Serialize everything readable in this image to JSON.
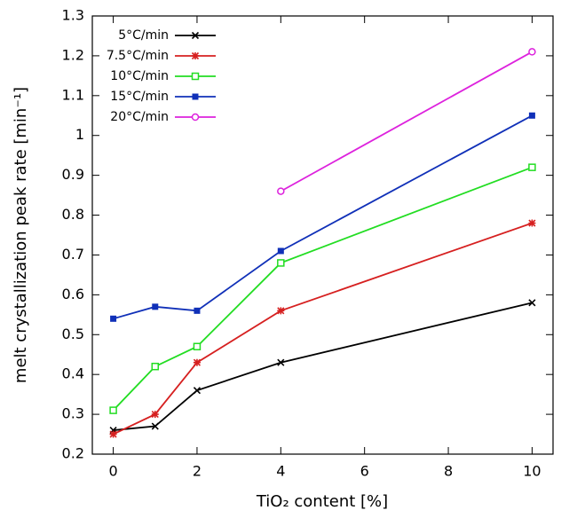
{
  "chart_data": {
    "type": "line",
    "x_label": "TiO₂ content [%]",
    "y_label": "melt crystallization peak rate [min⁻¹]",
    "x": [
      0,
      1,
      2,
      4,
      10
    ],
    "series": [
      {
        "name": "5°C/min",
        "color": "#000000",
        "marker": "x",
        "values": [
          0.26,
          0.27,
          0.36,
          0.43,
          0.58
        ]
      },
      {
        "name": "7.5°C/min",
        "color": "#d62020",
        "marker": "star",
        "values": [
          0.25,
          0.3,
          0.43,
          0.56,
          0.78
        ]
      },
      {
        "name": "10°C/min",
        "color": "#22dd22",
        "marker": "open-square",
        "values": [
          0.31,
          0.42,
          0.47,
          0.68,
          0.92
        ]
      },
      {
        "name": "15°C/min",
        "color": "#1030b8",
        "marker": "square",
        "values": [
          0.54,
          0.57,
          0.56,
          0.71,
          1.05
        ]
      },
      {
        "name": "20°C/min",
        "color": "#dd22dd",
        "marker": "open-circle",
        "values": [
          null,
          null,
          null,
          0.86,
          1.21
        ]
      }
    ],
    "xlim": [
      -0.5,
      10.5
    ],
    "xticks": [
      0,
      2,
      4,
      6,
      8,
      10
    ],
    "ylim": [
      0.2,
      1.3
    ],
    "yticks": [
      0.2,
      0.3,
      0.4,
      0.5,
      0.6,
      0.7,
      0.8,
      0.9,
      1,
      1.1,
      1.2,
      1.3
    ],
    "legend": "upper-left",
    "grid": false
  }
}
